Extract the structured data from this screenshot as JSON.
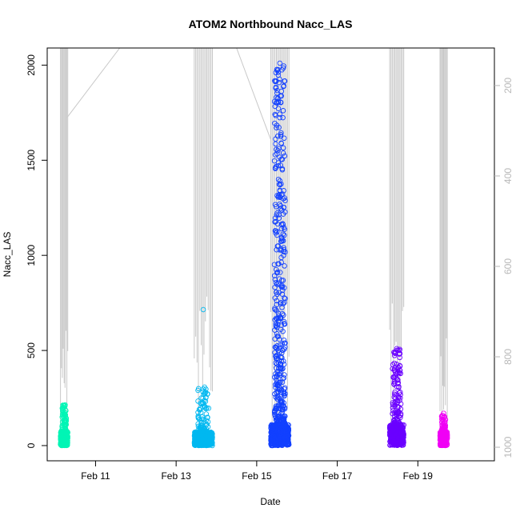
{
  "chart_data": {
    "type": "scatter",
    "title": "ATOM2 Northbound Nacc_LAS",
    "xlabel": "Date",
    "ylabel": "Nacc_LAS",
    "x_tick_labels": [
      "Feb 11",
      "Feb 13",
      "Feb 15",
      "Feb 17",
      "Feb 19"
    ],
    "x_tick_days": [
      11,
      13,
      15,
      17,
      19
    ],
    "xlim_days": [
      9.8,
      20.9
    ],
    "y_ticks": [
      0,
      500,
      1000,
      1500,
      2000
    ],
    "ylim": [
      -80,
      2090
    ],
    "y2_ticks": [
      200,
      400,
      600,
      800,
      1000
    ],
    "y2_label": "",
    "y2lim": [
      1030,
      117
    ],
    "colors": {
      "axis": "#000000",
      "secondary_axis": "#b8b8b8",
      "pressure_trace": "#c8c8c8"
    },
    "flights": [
      {
        "day_start": 10.13,
        "day_end": 10.31,
        "color": "#00f5b5",
        "y_core_max": 75,
        "y_spread": 140,
        "y_peak": 210
      },
      {
        "day_start": 13.45,
        "day_end": 13.9,
        "color": "#00b8f0",
        "y_core_max": 70,
        "y_spread": 240,
        "y_peak": 715
      },
      {
        "day_start": 15.35,
        "day_end": 15.8,
        "color": "#1240ff",
        "y_core_max": 110,
        "y_spread": 1900,
        "y_peak": 2010
      },
      {
        "day_start": 18.3,
        "day_end": 18.65,
        "color": "#6a00ff",
        "y_core_max": 110,
        "y_spread": 400,
        "y_peak": 510
      },
      {
        "day_start": 19.55,
        "day_end": 19.73,
        "color": "#f000f5",
        "y_core_max": 70,
        "y_spread": 90,
        "y_peak": 170
      }
    ]
  }
}
